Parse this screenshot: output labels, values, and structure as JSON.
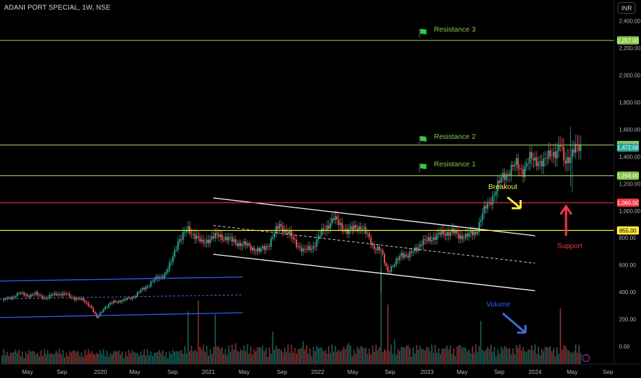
{
  "header": {
    "symbol_title": "ADANI PORT SPECIAL, 1W, NSE",
    "currency_button": "INR"
  },
  "colors": {
    "background": "#000000",
    "green": "#26a69a",
    "red": "#ef5350",
    "resistance": "#8bc34a",
    "support_line": "#f23645",
    "yellow_line": "#ffeb3b",
    "channel_blue": "#2962ff",
    "channel_white": "#ffffff",
    "volume_label": "#2962ff",
    "breakout_label": "#ffeb3b",
    "support_label": "#f23645"
  },
  "chart_data": {
    "type": "candlestick",
    "y_axis": {
      "min": 0,
      "max": 2400,
      "ticks": [
        0,
        200,
        400,
        600,
        800,
        1000,
        1200,
        1400,
        1600,
        1800,
        2000,
        2200,
        2400
      ],
      "tick_labels": [
        "0.00",
        "200.00",
        "400.00",
        "600.00",
        "800.00",
        "1,000.00",
        "1,200.00",
        "1,400.00",
        "1,600.00",
        "1,800.00",
        "2,000.00",
        "2,200.00",
        "2,400.00"
      ]
    },
    "x_axis": {
      "labels": [
        "May",
        "Sep",
        "2020",
        "May",
        "Sep",
        "2021",
        "May",
        "Sep",
        "2022",
        "May",
        "Sep",
        "2023",
        "May",
        "Sep",
        "2024",
        "May",
        "Sep"
      ]
    },
    "horizontal_levels": [
      {
        "label": "Resistance 3",
        "value": 2257,
        "price_label": "2,257.00",
        "color": "#8bc34a"
      },
      {
        "label": "Resistance 2",
        "value": 1485.5,
        "price_label": "1,485.50",
        "color": "#8bc34a"
      },
      {
        "label": "Resistance 1",
        "value": 1259,
        "price_label": "1,259.00",
        "color": "#8bc34a"
      },
      {
        "label": "",
        "value": 1060,
        "price_label": "1,060.00",
        "color": "#f23645"
      },
      {
        "label": "",
        "value": 855,
        "price_label": "855.00",
        "color": "#ffeb3b"
      }
    ],
    "current_price": {
      "value": 1472,
      "price_label": "1,472.00"
    },
    "annotations": [
      "Resistance 3",
      "Resistance 2",
      "Resistance 1",
      "Breakout",
      "Support",
      "Volume"
    ],
    "grid": false,
    "anchors": [
      [
        0,
        340
      ],
      [
        6,
        365
      ],
      [
        10,
        390
      ],
      [
        16,
        375
      ],
      [
        20,
        385
      ],
      [
        26,
        355
      ],
      [
        32,
        390
      ],
      [
        38,
        380
      ],
      [
        44,
        350
      ],
      [
        48,
        340
      ],
      [
        52,
        300
      ],
      [
        56,
        210
      ],
      [
        60,
        280
      ],
      [
        66,
        330
      ],
      [
        72,
        340
      ],
      [
        78,
        370
      ],
      [
        84,
        430
      ],
      [
        90,
        490
      ],
      [
        96,
        530
      ],
      [
        100,
        620
      ],
      [
        104,
        780
      ],
      [
        110,
        860
      ],
      [
        114,
        820
      ],
      [
        118,
        760
      ],
      [
        122,
        790
      ],
      [
        128,
        820
      ],
      [
        134,
        790
      ],
      [
        140,
        760
      ],
      [
        146,
        740
      ],
      [
        152,
        700
      ],
      [
        158,
        760
      ],
      [
        164,
        900
      ],
      [
        170,
        820
      ],
      [
        174,
        760
      ],
      [
        178,
        700
      ],
      [
        184,
        740
      ],
      [
        190,
        860
      ],
      [
        196,
        940
      ],
      [
        200,
        900
      ],
      [
        204,
        840
      ],
      [
        208,
        880
      ],
      [
        212,
        880
      ],
      [
        216,
        820
      ],
      [
        220,
        730
      ],
      [
        224,
        700
      ],
      [
        228,
        560
      ],
      [
        232,
        600
      ],
      [
        236,
        690
      ],
      [
        240,
        660
      ],
      [
        244,
        720
      ],
      [
        248,
        760
      ],
      [
        254,
        800
      ],
      [
        260,
        830
      ],
      [
        266,
        850
      ],
      [
        270,
        810
      ],
      [
        276,
        820
      ],
      [
        280,
        840
      ],
      [
        284,
        980
      ],
      [
        288,
        1060
      ],
      [
        292,
        1160
      ],
      [
        296,
        1250
      ],
      [
        300,
        1300
      ],
      [
        304,
        1340
      ],
      [
        308,
        1300
      ],
      [
        312,
        1380
      ],
      [
        316,
        1380
      ],
      [
        320,
        1340
      ],
      [
        324,
        1440
      ],
      [
        328,
        1420
      ],
      [
        330,
        1480
      ],
      [
        332,
        1380
      ],
      [
        336,
        1400
      ],
      [
        340,
        1470
      ],
      [
        342,
        1480
      ]
    ],
    "count": 343,
    "volume": {
      "max": 100,
      "spikes": [
        [
          110,
          55
        ],
        [
          116,
          66
        ],
        [
          126,
          52
        ],
        [
          138,
          22
        ],
        [
          160,
          34
        ],
        [
          178,
          24
        ],
        [
          205,
          22
        ],
        [
          224,
          100
        ],
        [
          228,
          62
        ],
        [
          232,
          26
        ],
        [
          240,
          20
        ],
        [
          251,
          18
        ],
        [
          270,
          20
        ],
        [
          283,
          45
        ],
        [
          291,
          18
        ],
        [
          305,
          17
        ],
        [
          330,
          58
        ],
        [
          333,
          19
        ],
        [
          337,
          12
        ]
      ]
    }
  }
}
